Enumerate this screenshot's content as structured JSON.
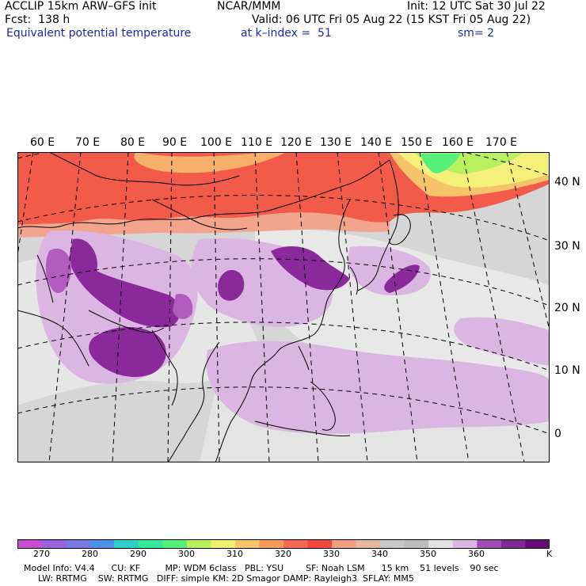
{
  "header": {
    "model": "ACCLIP 15km ARW–GFS init",
    "org": "NCAR/MMM",
    "init": "Init: 12 UTC Sat 30 Jul 22",
    "fcst": "Fcst:  138 h",
    "valid": "Valid: 06 UTC Fri 05 Aug 22 (15 KST Fri 05 Aug 22)",
    "field": "Equivalent potential temperature",
    "level": "at k–index =  51",
    "smooth": "sm= 2"
  },
  "map": {
    "lon_labels": [
      "60 E",
      "70 E",
      "80 E",
      "90 E",
      "100 E",
      "110 E",
      "120 E",
      "130 E",
      "140 E",
      "150 E",
      "160 E",
      "170 E"
    ],
    "lat_labels": [
      "40 N",
      "30 N",
      "20 N",
      "10 N",
      "0"
    ],
    "colors": {
      "background": "#d6d6d6",
      "north_warm": "#f25a4a",
      "light_purple": "#dcb6e2",
      "mid_purple": "#b35cc0",
      "dark_purple": "#8a2a9a",
      "green": "#7fe07a",
      "yellow": "#f5f07a",
      "coast": "#000000",
      "grid": "#000000"
    }
  },
  "colorbar": {
    "ticks": [
      "270",
      "280",
      "290",
      "300",
      "310",
      "320",
      "330",
      "340",
      "350",
      "360"
    ],
    "unit": "K",
    "colors": [
      "#c64fd0",
      "#9a62dd",
      "#7a78e2",
      "#4f90e8",
      "#2fcfc8",
      "#37e89a",
      "#55f07a",
      "#b8f060",
      "#f0f070",
      "#f7c46a",
      "#f59a5a",
      "#f36a54",
      "#f14a3c",
      "#f2a085",
      "#e6b8a0",
      "#c8c8c8",
      "#bdbdbd",
      "#e2e2e2",
      "#dcb6e2",
      "#a14eb2",
      "#7d2a92",
      "#680a78"
    ]
  },
  "info": {
    "line1": "Model Info: V4.4      CU: KF         MP: WDM 6class   PBL: YSU        SF: Noah LSM      15 km    51 levels    90 sec",
    "line2": "LW: RRTMG    SW: RRTMG   DIFF: simple KM: 2D Smagor DAMP: Rayleigh3  SFLAY: MM5"
  }
}
